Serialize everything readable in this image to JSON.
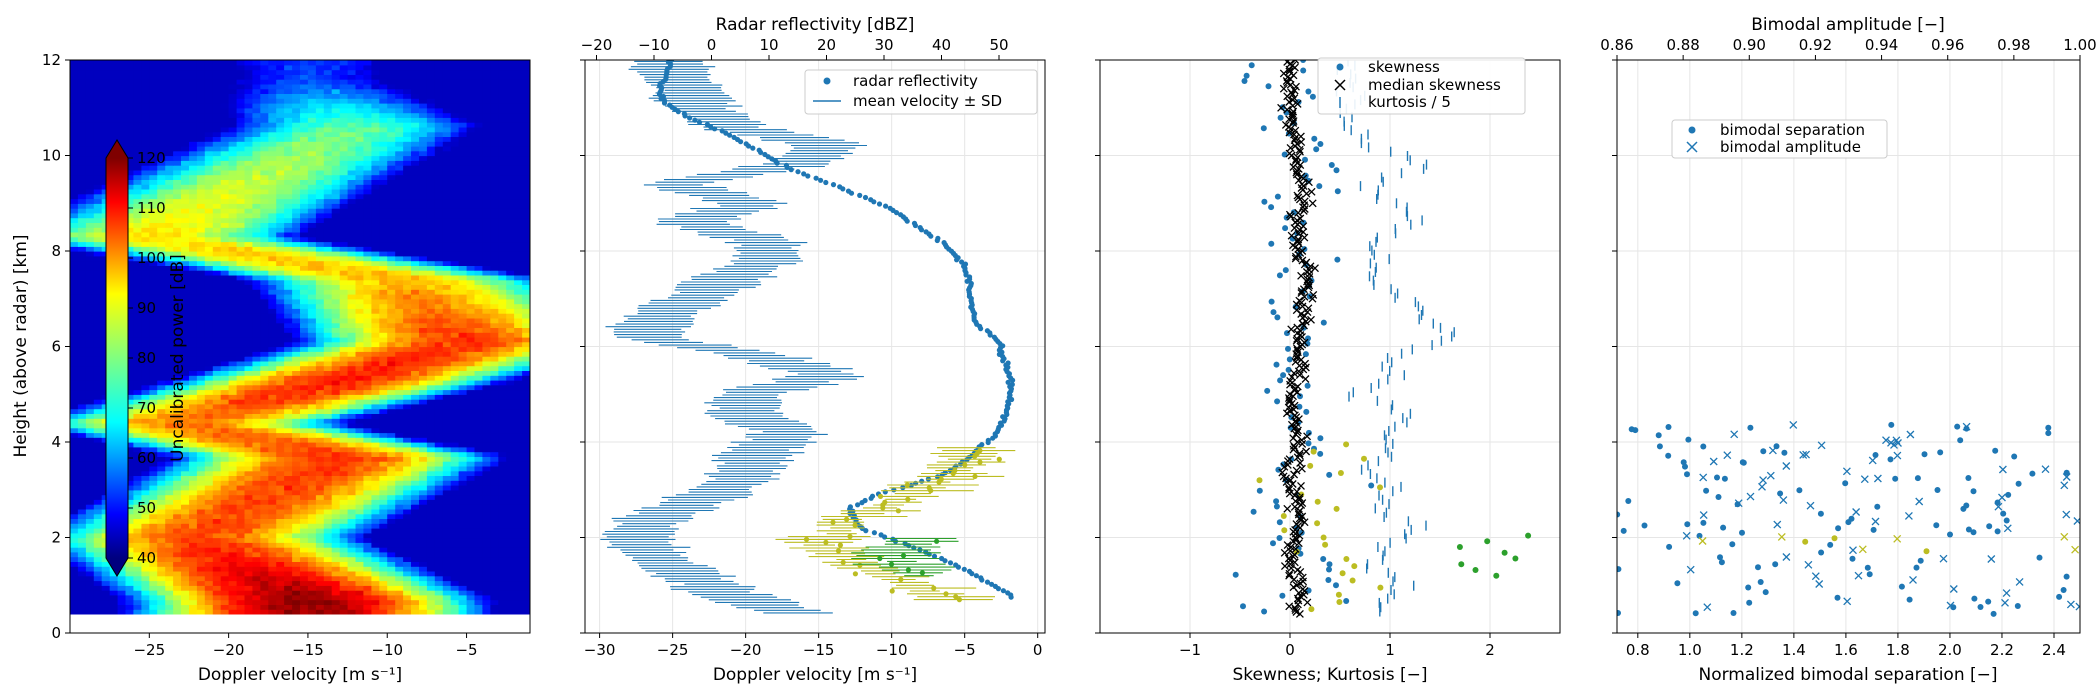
{
  "figure": {
    "background": "#ffffff"
  },
  "chart_data": [
    {
      "type": "heatmap",
      "xlabel": "Doppler velocity [m s⁻¹]",
      "ylabel": "Height (above radar) [km]",
      "xlim": [
        -30,
        -1
      ],
      "ylim": [
        0,
        12
      ],
      "xticks": [
        -25,
        -20,
        -15,
        -10,
        -5
      ],
      "yticks": [
        0,
        2,
        4,
        6,
        8,
        10,
        12
      ],
      "colorbar": {
        "label": "Uncalibrated power [dB]",
        "range": [
          40,
          120
        ],
        "ticks": [
          40,
          50,
          60,
          70,
          80,
          90,
          100,
          110,
          120
        ],
        "colormap": "jet",
        "extend": "both"
      },
      "data_height_range_km": [
        0.4,
        12
      ],
      "bands": [
        {
          "height": 0.7,
          "velocity_center": -15,
          "power": 118
        },
        {
          "height": 2.0,
          "velocity_center": -22,
          "power": 104
        },
        {
          "height": 3.7,
          "velocity_center": -13,
          "power": 106
        },
        {
          "height": 4.4,
          "velocity_center": -23,
          "power": 100
        },
        {
          "height": 5.2,
          "velocity_center": -14,
          "power": 108
        },
        {
          "height": 6.1,
          "velocity_center": -5,
          "power": 106
        },
        {
          "height": 7.4,
          "velocity_center": -9,
          "power": 96
        },
        {
          "height": 8.3,
          "velocity_center": -25,
          "power": 92
        },
        {
          "height": 9.6,
          "velocity_center": -18,
          "power": 85
        },
        {
          "height": 10.6,
          "velocity_center": -12,
          "power": 78
        },
        {
          "height": 11.6,
          "velocity_center": -15,
          "power": 55
        }
      ]
    },
    {
      "type": "line",
      "xlabel": "Doppler velocity [m s⁻¹]",
      "xlabel_top": "Radar reflectivity [dBZ]",
      "xlim": [
        -31,
        0.5
      ],
      "xticks": [
        -30,
        -25,
        -20,
        -15,
        -10,
        -5,
        0
      ],
      "xlim_top": [
        -22,
        58
      ],
      "xticks_top": [
        -20,
        -10,
        0,
        10,
        20,
        30,
        40,
        50
      ],
      "ylim": [
        0,
        12
      ],
      "yticks": [
        0,
        2,
        4,
        6,
        8,
        10,
        12
      ],
      "grid": true,
      "legend": {
        "position": "top-right",
        "entries": [
          "radar reflectivity",
          "mean velocity ± SD"
        ]
      },
      "series": [
        {
          "name": "mean velocity ± SD",
          "color": "#1f77b4",
          "sd": 1.8,
          "h": [
            0.4,
            0.8,
            1.2,
            1.6,
            2.0,
            2.4,
            2.8,
            3.2,
            3.6,
            3.9,
            4.2,
            4.6,
            5.0,
            5.4,
            5.8,
            6.2,
            6.6,
            7.0,
            7.4,
            7.8,
            8.2,
            8.6,
            9.0,
            9.4,
            9.8,
            10.2,
            10.6,
            11.0,
            11.4,
            11.8
          ],
          "v": [
            -16.5,
            -21,
            -24,
            -26,
            -27.5,
            -26.5,
            -23,
            -20.5,
            -19.5,
            -18.5,
            -17,
            -20,
            -20,
            -14,
            -19,
            -27,
            -26,
            -23.5,
            -21.5,
            -18.5,
            -18.5,
            -24,
            -19.5,
            -25,
            -17,
            -14,
            -21,
            -23,
            -24,
            -25
          ]
        },
        {
          "name": "radar reflectivity",
          "color": "#1f77b4",
          "h": [
            0.8,
            1.0,
            1.4,
            1.8,
            2.2,
            2.6,
            2.9,
            3.3,
            3.7,
            4.1,
            4.5,
            4.9,
            5.3,
            5.7,
            6.1,
            6.5,
            6.9,
            7.3,
            7.7,
            8.1,
            8.5,
            8.9,
            9.3,
            9.7,
            10.1,
            10.5,
            10.8,
            11.1,
            11.4,
            11.7,
            12.0
          ],
          "dbz": [
            52,
            49,
            43,
            35,
            26,
            24,
            29,
            40,
            45,
            49,
            51,
            52,
            52,
            51,
            50,
            46,
            45,
            45,
            44,
            41,
            36,
            31,
            23,
            14,
            8,
            2,
            -4,
            -8,
            -9,
            -8,
            -7
          ]
        }
      ],
      "secondary_points": [
        {
          "color": "#bcbd22",
          "h": [
            0.7,
            0.9,
            1.1,
            1.3,
            1.5,
            1.7,
            1.9,
            2.1,
            2.3,
            2.5,
            2.7,
            3.0,
            3.3,
            3.6,
            3.9
          ],
          "v": [
            -5,
            -7,
            -9,
            -11,
            -13,
            -14,
            -15,
            -14,
            -13,
            -12,
            -10,
            -8,
            -6,
            -5,
            -4
          ]
        },
        {
          "color": "#2ca02c",
          "h": [
            1.2,
            1.4,
            1.6,
            1.8,
            2.0
          ],
          "v": [
            -8,
            -9,
            -10,
            -9,
            -8
          ]
        }
      ]
    },
    {
      "type": "scatter",
      "xlabel": "Skewness; Kurtosis [−]",
      "xlim": [
        -1.9,
        2.7
      ],
      "xticks": [
        -1,
        0,
        1,
        2
      ],
      "ylim": [
        0,
        12
      ],
      "yticks": [
        0,
        2,
        4,
        6,
        8,
        10,
        12
      ],
      "grid": true,
      "legend": {
        "position": "top-right",
        "entries": [
          {
            "label": "skewness",
            "marker": "dot"
          },
          {
            "label": "median skewness",
            "marker": "x"
          },
          {
            "label": "kurtosis / 5",
            "marker": "vline"
          }
        ]
      },
      "series": [
        {
          "name": "median skewness",
          "color": "#000000",
          "h": [
            0.4,
            0.8,
            1.2,
            1.6,
            2.0,
            2.4,
            2.8,
            3.2,
            3.6,
            4.0,
            4.4,
            4.8,
            5.2,
            5.6,
            6.0,
            6.4,
            6.8,
            7.2,
            7.6,
            8.0,
            8.4,
            8.8,
            9.2,
            9.6,
            10.0,
            10.4,
            10.8,
            11.2,
            11.6,
            12.0
          ],
          "x": [
            0.05,
            0.1,
            0.05,
            0.0,
            0.05,
            0.1,
            0.05,
            0.0,
            0.05,
            0.1,
            0.05,
            0.0,
            0.05,
            0.1,
            0.1,
            0.1,
            0.15,
            0.15,
            0.15,
            0.1,
            0.05,
            0.1,
            0.15,
            0.1,
            0.05,
            0.05,
            0.0,
            0.0,
            0.0,
            0.0
          ]
        },
        {
          "name": "kurtosis / 5",
          "color": "#1f77b4",
          "h": [
            0.6,
            1.0,
            1.4,
            1.8,
            2.2,
            2.6,
            3.0,
            3.4,
            3.8,
            4.2,
            4.6,
            5.0,
            5.4,
            5.8,
            6.2,
            6.6,
            7.0,
            7.4,
            7.8,
            8.2,
            8.6,
            9.0,
            9.4,
            9.8,
            10.2,
            10.6
          ],
          "x": [
            0.9,
            1.2,
            0.8,
            1.0,
            1.3,
            0.9,
            1.1,
            0.7,
            1.0,
            0.9,
            1.2,
            0.6,
            1.1,
            1.0,
            1.6,
            1.4,
            1.2,
            0.8,
            0.9,
            0.8,
            1.3,
            1.0,
            0.7,
            1.4,
            0.8,
            0.6
          ]
        }
      ]
    },
    {
      "type": "scatter",
      "xlabel": "Normalized bimodal separation [−]",
      "xlabel_top": "Bimodal amplitude [−]",
      "xlim": [
        0.72,
        2.5
      ],
      "xticks": [
        0.8,
        1.0,
        1.2,
        1.4,
        1.6,
        1.8,
        2.0,
        2.2,
        2.4
      ],
      "xlim_top": [
        0.86,
        1.0
      ],
      "xticks_top": [
        0.86,
        0.88,
        0.9,
        0.92,
        0.94,
        0.96,
        0.98,
        1.0
      ],
      "ylim": [
        0,
        12
      ],
      "grid": true,
      "legend": {
        "position": "upper-left",
        "entries": [
          {
            "label": "bimodal separation",
            "marker": "dot"
          },
          {
            "label": "bimodal amplitude",
            "marker": "x"
          }
        ]
      }
    }
  ]
}
